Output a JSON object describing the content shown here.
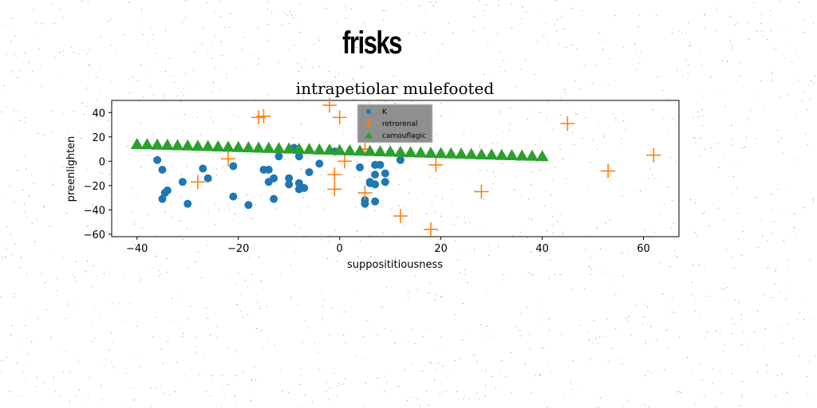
{
  "suptitle": "frisks",
  "chart_data": {
    "type": "scatter",
    "title": "intrapetiolar mulefooted",
    "xlabel": "supposititiousness",
    "ylabel": "preenlighten",
    "xlim": [
      -45,
      67
    ],
    "ylim": [
      -62,
      50
    ],
    "xticks": [
      -40,
      -20,
      0,
      20,
      40,
      60
    ],
    "yticks": [
      -60,
      -40,
      -20,
      0,
      20,
      40
    ],
    "grid": false,
    "legend_placement": "top-center",
    "colors": {
      "K": "#1f77b4",
      "retrorenal": "#ff7f0e",
      "camouflagic": "#2ca02c"
    },
    "series": [
      {
        "name": "K",
        "marker": "circle",
        "x": [
          -36,
          -35,
          -34.5,
          -35,
          -34,
          -31,
          -30,
          -27,
          -26,
          -21,
          -21,
          -18,
          -15,
          -14,
          -14,
          -13,
          -13,
          -12,
          -10,
          -10,
          -9,
          -8,
          -8,
          -8,
          -7,
          -6,
          -4,
          -1,
          4,
          5,
          5,
          6,
          6,
          7,
          7,
          7,
          7,
          8,
          9,
          9,
          10,
          12
        ],
        "y": [
          1,
          -7,
          -26,
          -31,
          -24,
          -17,
          -35,
          -6,
          -14,
          -29,
          -4,
          -36,
          -7,
          -7,
          -17,
          -14,
          -31,
          4,
          -14,
          -19,
          11,
          4,
          -18,
          -23,
          -22,
          -9,
          -2,
          8,
          -5,
          -32,
          -35,
          -17,
          -18,
          -11,
          -3,
          -19,
          -33,
          -3,
          -10,
          -17,
          7,
          1
        ]
      },
      {
        "name": "retrorenal",
        "marker": "plus",
        "x": [
          -28,
          -22,
          -16,
          -15,
          -2,
          0,
          -1,
          -1,
          1,
          5,
          5,
          11,
          12,
          18,
          19,
          28,
          45,
          53,
          62
        ],
        "y": [
          -17,
          2,
          36,
          37,
          46,
          36,
          -11,
          -23,
          0,
          10,
          -26,
          42,
          -45,
          -56,
          -3,
          -25,
          31,
          -8,
          5
        ],
        "size": 1
      },
      {
        "name": "camouflagic",
        "marker": "triangle",
        "x": [
          -40,
          -38,
          -36,
          -34,
          -32,
          -30,
          -28,
          -26,
          -24,
          -22,
          -20,
          -18,
          -16,
          -14,
          -12,
          -10,
          -8,
          -6,
          -4,
          -2,
          0,
          2,
          4,
          6,
          8,
          10,
          12,
          14,
          16,
          18,
          20,
          22,
          24,
          26,
          28,
          30,
          32,
          34,
          36,
          38,
          40
        ],
        "y": [
          14,
          13.8,
          13.5,
          13.3,
          13,
          12.8,
          12.5,
          12.3,
          12,
          11.8,
          11.5,
          11.3,
          11,
          10.8,
          10.5,
          10.3,
          10,
          9.8,
          9.5,
          9.3,
          9,
          8.8,
          8.5,
          8.3,
          8,
          7.8,
          7.5,
          7.3,
          7,
          6.8,
          6.5,
          6.3,
          6,
          5.8,
          5.5,
          5.3,
          5,
          4.8,
          4.5,
          4.3,
          4
        ]
      }
    ]
  }
}
